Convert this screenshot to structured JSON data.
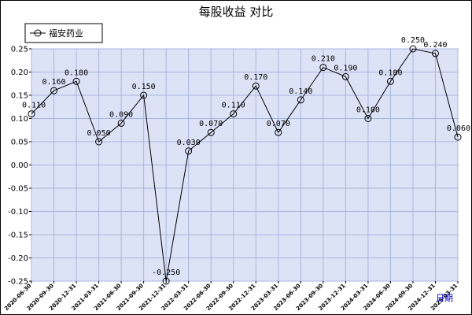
{
  "chart_data": {
    "type": "line",
    "title": "每股收益  对比",
    "xlabel": "日期",
    "ylabel": "",
    "ylim": [
      -0.25,
      0.25
    ],
    "yticks": [
      "0.25",
      "0.20",
      "0.15",
      "0.10",
      "0.05",
      "0.00",
      "-0.05",
      "-0.10",
      "-0.15",
      "-0.20",
      "-0.25"
    ],
    "legend_position": "top-left",
    "grid": true,
    "colors": {
      "plot_bg": "#dde3f7",
      "grid": "#a9b4dd",
      "line": "#000000",
      "axis_label": "#0000cc"
    },
    "categories": [
      "2020-06-30",
      "2020-09-30",
      "2020-12-31",
      "2021-03-31",
      "2021-06-30",
      "2021-09-30",
      "2021-12-31",
      "2022-03-31",
      "2022-06-30",
      "2022-09-30",
      "2022-12-31",
      "2023-03-31",
      "2023-06-30",
      "2023-09-30",
      "2023-12-31",
      "2024-03-31",
      "2024-06-30",
      "2024-09-30",
      "2024-12-31",
      "2025-03-31"
    ],
    "series": [
      {
        "name": "福安药业",
        "values": [
          0.11,
          0.16,
          0.18,
          0.05,
          0.09,
          0.15,
          -0.25,
          0.03,
          0.07,
          0.11,
          0.17,
          0.07,
          0.14,
          0.21,
          0.19,
          0.1,
          0.18,
          0.25,
          0.24,
          0.06
        ],
        "labels": [
          "0.110",
          "0.160",
          "0.180",
          "0.050",
          "0.090",
          "0.150",
          "-0.250",
          "0.030",
          "0.070",
          "0.110",
          "0.170",
          "0.070",
          "0.140",
          "0.210",
          "0.190",
          "0.100",
          "0.180",
          "0.250",
          "0.240",
          "0.060"
        ]
      }
    ]
  }
}
